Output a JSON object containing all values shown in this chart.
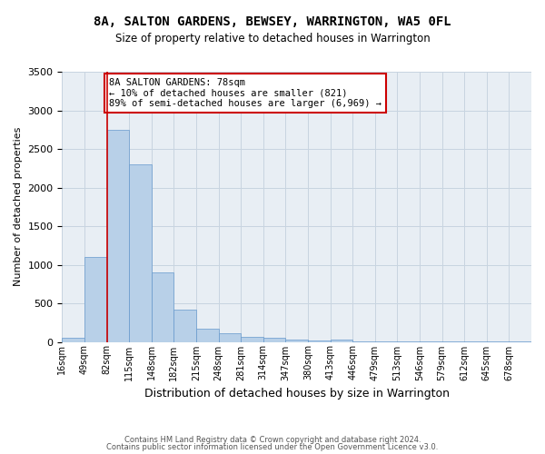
{
  "title_line1": "8A, SALTON GARDENS, BEWSEY, WARRINGTON, WA5 0FL",
  "title_line2": "Size of property relative to detached houses in Warrington",
  "xlabel": "Distribution of detached houses by size in Warrington",
  "ylabel": "Number of detached properties",
  "bin_labels": [
    "16sqm",
    "49sqm",
    "82sqm",
    "115sqm",
    "148sqm",
    "182sqm",
    "215sqm",
    "248sqm",
    "281sqm",
    "314sqm",
    "347sqm",
    "380sqm",
    "413sqm",
    "446sqm",
    "479sqm",
    "513sqm",
    "546sqm",
    "579sqm",
    "612sqm",
    "645sqm",
    "678sqm"
  ],
  "bar_heights": [
    50,
    1100,
    2750,
    2300,
    900,
    420,
    170,
    110,
    70,
    50,
    30,
    20,
    30,
    10,
    5,
    3,
    2,
    1,
    1,
    1,
    1
  ],
  "bar_color": "#b8d0e8",
  "bar_edge_color": "#6699cc",
  "grid_color": "#c8d4e0",
  "background_color": "#e8eef4",
  "marker_color": "#cc0000",
  "annotation_title": "8A SALTON GARDENS: 78sqm",
  "annotation_line1": "← 10% of detached houses are smaller (821)",
  "annotation_line2": "89% of semi-detached houses are larger (6,969) →",
  "annotation_box_color": "#cc0000",
  "ylim": [
    0,
    3500
  ],
  "yticks": [
    0,
    500,
    1000,
    1500,
    2000,
    2500,
    3000,
    3500
  ],
  "footer_line1": "Contains HM Land Registry data © Crown copyright and database right 2024.",
  "footer_line2": "Contains public sector information licensed under the Open Government Licence v3.0."
}
